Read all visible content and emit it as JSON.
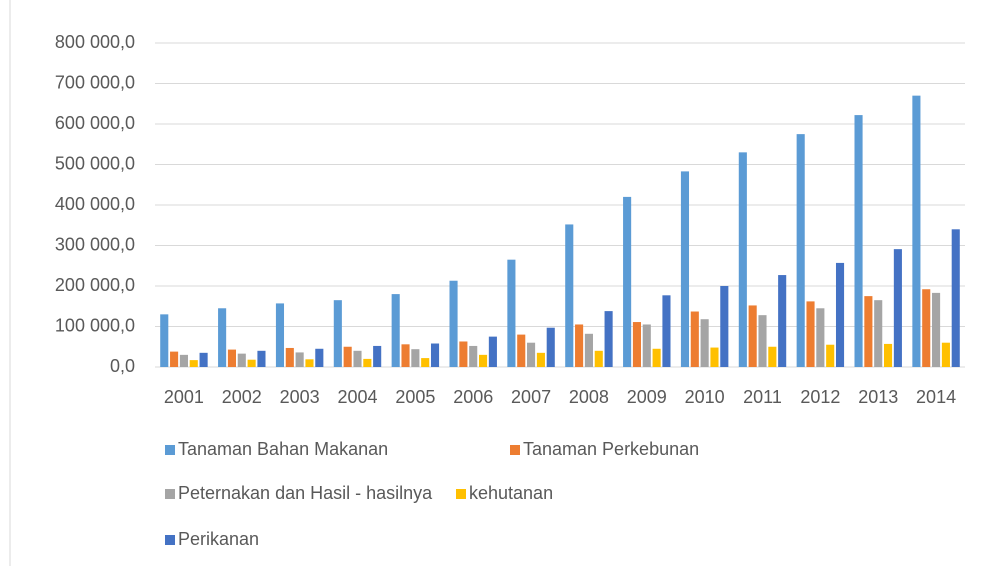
{
  "chart_data": {
    "type": "bar",
    "categories": [
      "2001",
      "2002",
      "2003",
      "2004",
      "2005",
      "2006",
      "2007",
      "2008",
      "2009",
      "2010",
      "2011",
      "2012",
      "2013",
      "2014"
    ],
    "series": [
      {
        "name": "Tanaman Bahan Makanan",
        "color": "#5b9bd5",
        "values": [
          130000,
          145000,
          157000,
          165000,
          180000,
          213000,
          265000,
          352000,
          420000,
          483000,
          530000,
          575000,
          622000,
          670000
        ]
      },
      {
        "name": "Tanaman Perkebunan",
        "color": "#ed7d31",
        "values": [
          38000,
          43000,
          47000,
          50000,
          56000,
          63000,
          80000,
          105000,
          111000,
          137000,
          152000,
          162000,
          175000,
          192000
        ]
      },
      {
        "name": "Peternakan dan Hasil - hasilnya",
        "color": "#a5a5a5",
        "values": [
          30000,
          33000,
          36000,
          40000,
          44000,
          52000,
          60000,
          82000,
          105000,
          118000,
          128000,
          145000,
          165000,
          183000
        ]
      },
      {
        "name": "kehutanan",
        "color": "#ffc000",
        "values": [
          17000,
          18000,
          19000,
          20000,
          22000,
          30000,
          35000,
          40000,
          45000,
          48000,
          50000,
          55000,
          57000,
          60000
        ]
      },
      {
        "name": "Perikanan",
        "color": "#4472c4",
        "values": [
          35000,
          40000,
          45000,
          52000,
          58000,
          75000,
          97000,
          138000,
          177000,
          200000,
          227000,
          257000,
          291000,
          340000
        ]
      }
    ],
    "ylim": [
      0,
      800000
    ],
    "yticks": [
      {
        "value": 0,
        "label": "0,0"
      },
      {
        "value": 100000,
        "label": "100 000,0"
      },
      {
        "value": 200000,
        "label": "200 000,0"
      },
      {
        "value": 300000,
        "label": "300 000,0"
      },
      {
        "value": 400000,
        "label": "400 000,0"
      },
      {
        "value": 500000,
        "label": "500 000,0"
      },
      {
        "value": 600000,
        "label": "600 000,0"
      },
      {
        "value": 700000,
        "label": "700 000,0"
      },
      {
        "value": 800000,
        "label": "800 000,0"
      }
    ],
    "grid": true,
    "legend": "bottom"
  }
}
